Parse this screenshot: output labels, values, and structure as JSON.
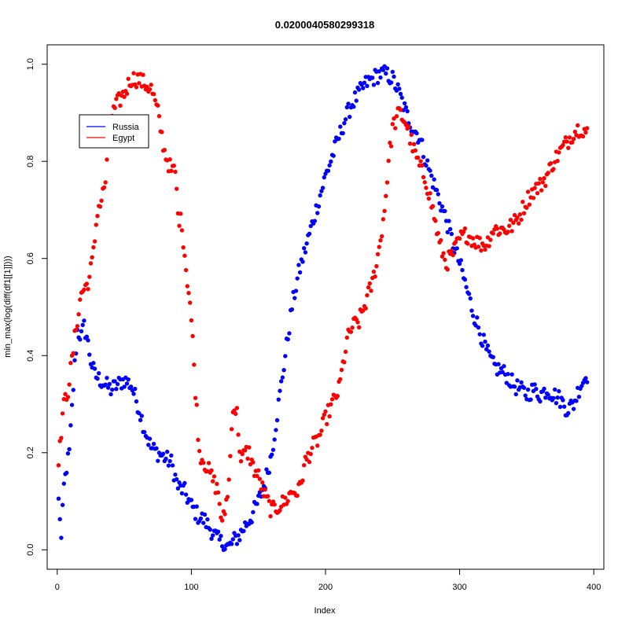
{
  "chart_data": {
    "type": "scatter",
    "title": "0.0200040580299318",
    "xlabel": "Index",
    "ylabel": "min_max(log(diff(df1[[1]])))",
    "xlim": [
      0,
      400
    ],
    "ylim": [
      0,
      1
    ],
    "x_ticks": [
      "0",
      "100",
      "200",
      "300",
      "400"
    ],
    "y_ticks": [
      "0.0",
      "0.2",
      "0.4",
      "0.6",
      "0.8",
      "1.0"
    ],
    "grid": false,
    "legend_position": "top-left",
    "series": [
      {
        "name": "Russia",
        "color": "#0000ff",
        "keypoints": [
          [
            1,
            0.1
          ],
          [
            2,
            0.07
          ],
          [
            3,
            0.02
          ],
          [
            5,
            0.13
          ],
          [
            7,
            0.17
          ],
          [
            9,
            0.2
          ],
          [
            11,
            0.29
          ],
          [
            13,
            0.38
          ],
          [
            15,
            0.45
          ],
          [
            18,
            0.44
          ],
          [
            20,
            0.46
          ],
          [
            22,
            0.44
          ],
          [
            25,
            0.39
          ],
          [
            28,
            0.36
          ],
          [
            32,
            0.35
          ],
          [
            36,
            0.34
          ],
          [
            40,
            0.33
          ],
          [
            45,
            0.34
          ],
          [
            50,
            0.35
          ],
          [
            55,
            0.34
          ],
          [
            60,
            0.3
          ],
          [
            65,
            0.25
          ],
          [
            70,
            0.21
          ],
          [
            75,
            0.2
          ],
          [
            80,
            0.19
          ],
          [
            85,
            0.18
          ],
          [
            90,
            0.13
          ],
          [
            95,
            0.12
          ],
          [
            100,
            0.09
          ],
          [
            105,
            0.07
          ],
          [
            110,
            0.06
          ],
          [
            115,
            0.04
          ],
          [
            120,
            0.02
          ],
          [
            125,
            0.01
          ],
          [
            128,
            0.005
          ],
          [
            132,
            0.02
          ],
          [
            136,
            0.03
          ],
          [
            140,
            0.05
          ],
          [
            145,
            0.07
          ],
          [
            150,
            0.1
          ],
          [
            155,
            0.14
          ],
          [
            160,
            0.2
          ],
          [
            165,
            0.3
          ],
          [
            170,
            0.4
          ],
          [
            175,
            0.5
          ],
          [
            180,
            0.57
          ],
          [
            185,
            0.62
          ],
          [
            190,
            0.67
          ],
          [
            195,
            0.72
          ],
          [
            200,
            0.77
          ],
          [
            205,
            0.81
          ],
          [
            210,
            0.85
          ],
          [
            215,
            0.89
          ],
          [
            220,
            0.92
          ],
          [
            225,
            0.94
          ],
          [
            230,
            0.96
          ],
          [
            235,
            0.97
          ],
          [
            240,
            0.98
          ],
          [
            245,
            0.98
          ],
          [
            250,
            0.97
          ],
          [
            255,
            0.94
          ],
          [
            260,
            0.9
          ],
          [
            265,
            0.87
          ],
          [
            270,
            0.85
          ],
          [
            275,
            0.8
          ],
          [
            280,
            0.76
          ],
          [
            285,
            0.72
          ],
          [
            290,
            0.68
          ],
          [
            295,
            0.63
          ],
          [
            300,
            0.59
          ],
          [
            305,
            0.54
          ],
          [
            310,
            0.49
          ],
          [
            315,
            0.45
          ],
          [
            320,
            0.41
          ],
          [
            325,
            0.38
          ],
          [
            330,
            0.37
          ],
          [
            335,
            0.36
          ],
          [
            340,
            0.34
          ],
          [
            345,
            0.33
          ],
          [
            350,
            0.32
          ],
          [
            355,
            0.33
          ],
          [
            360,
            0.32
          ],
          [
            365,
            0.33
          ],
          [
            370,
            0.32
          ],
          [
            375,
            0.31
          ],
          [
            380,
            0.29
          ],
          [
            385,
            0.3
          ],
          [
            390,
            0.34
          ],
          [
            395,
            0.36
          ]
        ]
      },
      {
        "name": "Egypt",
        "color": "#ff0000",
        "keypoints": [
          [
            1,
            0.19
          ],
          [
            2,
            0.21
          ],
          [
            4,
            0.28
          ],
          [
            6,
            0.31
          ],
          [
            8,
            0.33
          ],
          [
            10,
            0.37
          ],
          [
            12,
            0.41
          ],
          [
            14,
            0.46
          ],
          [
            16,
            0.49
          ],
          [
            18,
            0.53
          ],
          [
            21,
            0.54
          ],
          [
            24,
            0.56
          ],
          [
            27,
            0.61
          ],
          [
            30,
            0.7
          ],
          [
            33,
            0.72
          ],
          [
            36,
            0.76
          ],
          [
            40,
            0.89
          ],
          [
            45,
            0.92
          ],
          [
            50,
            0.94
          ],
          [
            55,
            0.97
          ],
          [
            60,
            0.97
          ],
          [
            65,
            0.96
          ],
          [
            70,
            0.95
          ],
          [
            75,
            0.9
          ],
          [
            80,
            0.82
          ],
          [
            85,
            0.78
          ],
          [
            88,
            0.78
          ],
          [
            90,
            0.69
          ],
          [
            93,
            0.67
          ],
          [
            96,
            0.58
          ],
          [
            99,
            0.51
          ],
          [
            101,
            0.43
          ],
          [
            103,
            0.33
          ],
          [
            106,
            0.2
          ],
          [
            110,
            0.18
          ],
          [
            115,
            0.15
          ],
          [
            120,
            0.12
          ],
          [
            123,
            0.05
          ],
          [
            125,
            0.08
          ],
          [
            128,
            0.14
          ],
          [
            131,
            0.3
          ],
          [
            134,
            0.28
          ],
          [
            137,
            0.18
          ],
          [
            140,
            0.2
          ],
          [
            143,
            0.2
          ],
          [
            146,
            0.17
          ],
          [
            150,
            0.15
          ],
          [
            155,
            0.11
          ],
          [
            160,
            0.08
          ],
          [
            165,
            0.09
          ],
          [
            170,
            0.1
          ],
          [
            175,
            0.12
          ],
          [
            180,
            0.12
          ],
          [
            185,
            0.18
          ],
          [
            190,
            0.21
          ],
          [
            195,
            0.23
          ],
          [
            200,
            0.27
          ],
          [
            205,
            0.3
          ],
          [
            210,
            0.33
          ],
          [
            213,
            0.38
          ],
          [
            216,
            0.43
          ],
          [
            220,
            0.46
          ],
          [
            225,
            0.47
          ],
          [
            230,
            0.51
          ],
          [
            235,
            0.55
          ],
          [
            240,
            0.62
          ],
          [
            244,
            0.7
          ],
          [
            247,
            0.8
          ],
          [
            250,
            0.87
          ],
          [
            255,
            0.9
          ],
          [
            260,
            0.88
          ],
          [
            265,
            0.83
          ],
          [
            270,
            0.79
          ],
          [
            275,
            0.76
          ],
          [
            280,
            0.7
          ],
          [
            285,
            0.63
          ],
          [
            290,
            0.59
          ],
          [
            295,
            0.61
          ],
          [
            300,
            0.64
          ],
          [
            305,
            0.65
          ],
          [
            310,
            0.64
          ],
          [
            315,
            0.63
          ],
          [
            320,
            0.63
          ],
          [
            325,
            0.66
          ],
          [
            330,
            0.66
          ],
          [
            335,
            0.66
          ],
          [
            340,
            0.67
          ],
          [
            345,
            0.69
          ],
          [
            350,
            0.72
          ],
          [
            355,
            0.74
          ],
          [
            360,
            0.75
          ],
          [
            365,
            0.77
          ],
          [
            370,
            0.8
          ],
          [
            375,
            0.82
          ],
          [
            380,
            0.84
          ],
          [
            385,
            0.86
          ],
          [
            390,
            0.87
          ],
          [
            395,
            0.86
          ]
        ]
      }
    ]
  }
}
